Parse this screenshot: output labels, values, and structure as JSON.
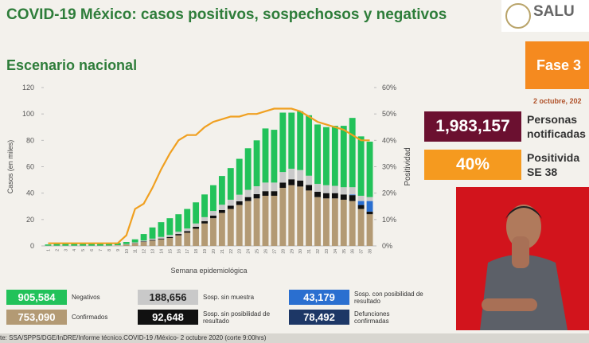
{
  "header": {
    "title": "COVID-19 México: casos positivos, sospechosos y negativos",
    "logo": "SALU"
  },
  "chart_data": {
    "type": "bar",
    "title": "Escenario nacional",
    "xlabel": "Semana epidemiológica",
    "ylabel": "Casos (en miles)",
    "categories": [
      "1",
      "2",
      "3",
      "4",
      "5",
      "6",
      "7",
      "8",
      "9",
      "10",
      "11",
      "12",
      "13",
      "14",
      "15",
      "16",
      "17",
      "18",
      "19",
      "20",
      "21",
      "22",
      "23",
      "24",
      "25",
      "26",
      "27",
      "28",
      "29",
      "30",
      "31",
      "32",
      "33",
      "34",
      "35",
      "36",
      "37",
      "38"
    ],
    "ylim": [
      0,
      120
    ],
    "yticks": [
      0,
      20,
      40,
      60,
      80,
      100,
      120
    ],
    "y2lim": [
      0,
      60
    ],
    "y2ticks": [
      {
        "value": 0,
        "label": "0%"
      },
      {
        "value": 10,
        "label": "10%"
      },
      {
        "value": 20,
        "label": "20%"
      },
      {
        "value": 30,
        "label": "30%"
      },
      {
        "value": 40,
        "label": "40%"
      },
      {
        "value": 50,
        "label": "50%"
      },
      {
        "value": 60,
        "label": "60%"
      }
    ],
    "series": [
      {
        "name": "Confirmados",
        "total": "753,090",
        "color": "#b39a74",
        "values": [
          0.1,
          0.1,
          0.1,
          0.1,
          0.1,
          0.1,
          0.1,
          0.2,
          0.4,
          1,
          2,
          3,
          4,
          5,
          6,
          8,
          10,
          13,
          17,
          21,
          25,
          28,
          31,
          34,
          36,
          38,
          38,
          44,
          46,
          45,
          42,
          37,
          36,
          36,
          35,
          34,
          28,
          24
        ]
      },
      {
        "name": "Sosp. sin posibilidad de resultado",
        "total": "92,648",
        "color": "#111111",
        "values": [
          0,
          0,
          0,
          0,
          0,
          0,
          0,
          0,
          0,
          0.1,
          0.2,
          0.3,
          0.5,
          0.6,
          0.8,
          1,
          1.2,
          1.5,
          1.8,
          2,
          2.2,
          2.5,
          2.8,
          3,
          3.2,
          3.5,
          3.5,
          4,
          4.5,
          4.5,
          4.2,
          4,
          4,
          4,
          4,
          4.5,
          3,
          2
        ]
      },
      {
        "name": "Sosp. con posibilidad de resultado",
        "total": "43,179",
        "color": "#2a6fd0",
        "values": [
          0,
          0,
          0,
          0,
          0,
          0,
          0,
          0,
          0,
          0,
          0,
          0,
          0,
          0,
          0,
          0,
          0,
          0,
          0,
          0,
          0,
          0,
          0,
          0,
          0,
          0,
          0,
          0,
          0,
          0,
          0,
          0,
          0,
          0,
          0,
          0.5,
          3,
          8
        ]
      },
      {
        "name": "Sosp. sin muestra",
        "total": "188,656",
        "color": "#c9c9c9",
        "values": [
          0.1,
          0.1,
          0.1,
          0.1,
          0.1,
          0.1,
          0.1,
          0.1,
          0.2,
          0.3,
          0.5,
          0.8,
          1,
          1.2,
          1.5,
          1.8,
          2,
          2.5,
          3,
          3.5,
          4,
          4.5,
          5,
          5.5,
          6,
          6.5,
          6.5,
          8,
          8,
          8,
          7,
          6,
          6,
          5.5,
          5.5,
          5.5,
          4,
          3
        ]
      },
      {
        "name": "Negativos",
        "total": "905,584",
        "color": "#22c25a",
        "values": [
          0.9,
          1.4,
          1.9,
          1.9,
          1.7,
          1.5,
          1.4,
          1.5,
          1.6,
          1.6,
          2.3,
          4.9,
          8.5,
          11.2,
          12.7,
          13.2,
          14.8,
          16,
          17.2,
          19.5,
          21.8,
          24,
          27.2,
          31.5,
          34.8,
          41,
          40,
          45,
          42.5,
          44.5,
          45.8,
          45,
          44,
          45.5,
          46.5,
          52.5,
          45,
          42
        ]
      },
      {
        "name": "Positividad",
        "type": "line",
        "axis": "y2",
        "color": "#f0a020",
        "values": [
          1,
          1,
          1,
          1,
          1,
          1,
          1,
          1,
          1,
          4,
          14,
          16,
          22,
          29,
          35,
          40,
          42,
          42,
          45,
          47,
          48,
          49,
          49,
          50,
          50,
          51,
          52,
          52,
          52,
          51,
          49,
          47,
          46,
          45,
          44,
          42,
          40,
          40
        ]
      }
    ],
    "extra": {
      "name": "Defunciones confirmadas",
      "total": "78,492",
      "color": "#1d3766"
    }
  },
  "panel": {
    "phase": "Fase 3",
    "date": "2 octubre, 202",
    "notified": "1,983,157",
    "notified_label_1": "Personas",
    "notified_label_2": "notificadas",
    "positivity": "40%",
    "positivity_label_1": "Positivida",
    "positivity_label_2": "SE 38"
  },
  "footer": "te: SSA/SPPS/DGE/InDRE/Informe técnico.COVID-19 /México- 2 octubre 2020 (corte 9:00hrs)"
}
